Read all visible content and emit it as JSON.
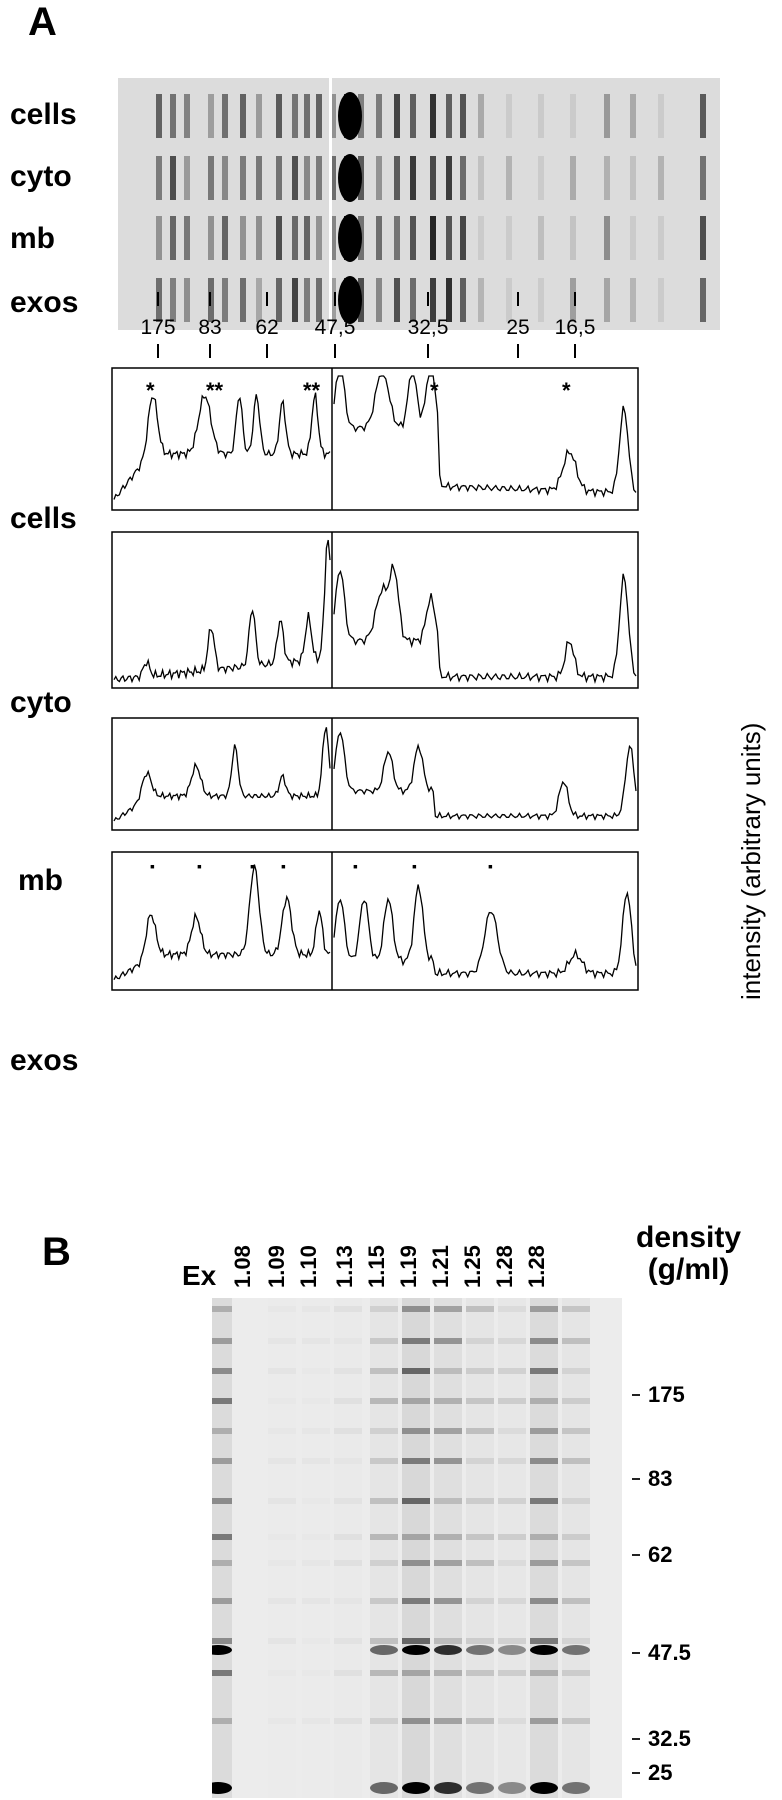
{
  "panel_a": {
    "label": "A",
    "gel_rows": [
      "cells",
      "cyto",
      "mb",
      "exos"
    ],
    "mw_markers": [
      "175",
      "83",
      "62",
      "47,5",
      "32,5",
      "25",
      "16,5"
    ],
    "profile_rows": [
      {
        "label": "cells",
        "markers": [
          "*",
          "**",
          "**",
          "*",
          "*"
        ]
      },
      {
        "label": "cyto",
        "markers": []
      },
      {
        "label": "mb",
        "markers": []
      },
      {
        "label": "exos",
        "markers": [
          "▪",
          "▪",
          "▪",
          "▪",
          "▪",
          "▪",
          "▪"
        ]
      }
    ],
    "y_axis_title": "intensity (arbitrary units)"
  },
  "panel_b": {
    "label": "B",
    "lanes": [
      "Ex",
      "1.08",
      "1.09",
      "1.10",
      "1.13",
      "1.15",
      "1.19",
      "1.21",
      "1.25",
      "1.28",
      "1.28"
    ],
    "density_title_line1": "density",
    "density_title_line2": "(g/ml)",
    "mw_markers": [
      "175",
      "83",
      "62",
      "47.5",
      "32.5",
      "25"
    ]
  }
}
